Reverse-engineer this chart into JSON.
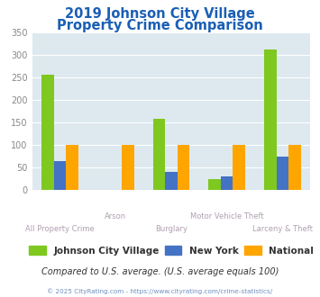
{
  "title_line1": "2019 Johnson City Village",
  "title_line2": "Property Crime Comparison",
  "categories": [
    "All Property Crime",
    "Arson",
    "Burglary",
    "Motor Vehicle Theft",
    "Larceny & Theft"
  ],
  "series": {
    "Johnson City Village": [
      257,
      0,
      158,
      25,
      312
    ],
    "New York": [
      65,
      0,
      40,
      30,
      75
    ],
    "National": [
      100,
      100,
      100,
      100,
      100
    ]
  },
  "colors": {
    "Johnson City Village": "#7ec820",
    "New York": "#4472c4",
    "National": "#ffa500"
  },
  "ylim": [
    0,
    350
  ],
  "yticks": [
    0,
    50,
    100,
    150,
    200,
    250,
    300,
    350
  ],
  "fig_bg_color": "#ffffff",
  "plot_bg_color": "#dde9ef",
  "title_color": "#1a5fb4",
  "xlabel_color": "#b0a0b0",
  "footer_text": "Compared to U.S. average. (U.S. average equals 100)",
  "copyright_text": "© 2025 CityRating.com - https://www.cityrating.com/crime-statistics/",
  "footer_color": "#333333",
  "copyright_color": "#7090c0",
  "grid_color": "#ffffff",
  "legend_text_color": "#333333"
}
